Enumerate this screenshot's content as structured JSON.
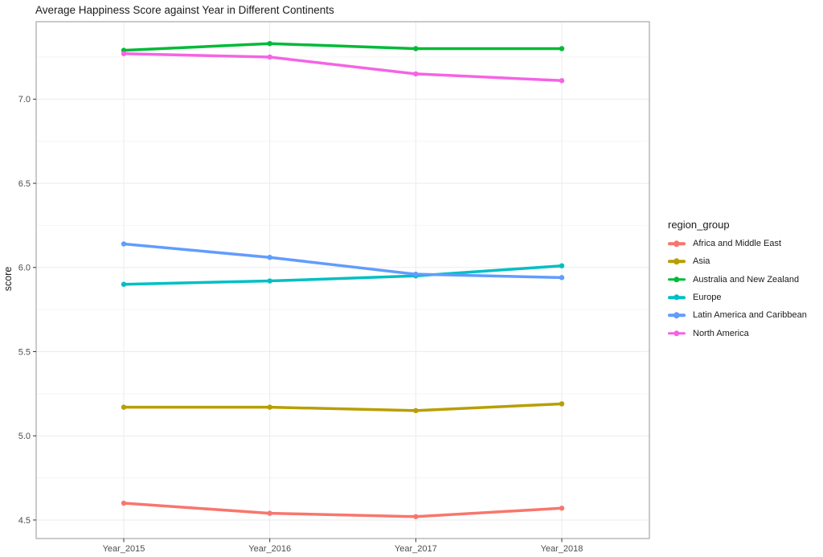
{
  "chart_data": {
    "type": "line",
    "title": "Average Happiness Score against Year in Different Continents",
    "xlabel": "",
    "ylabel": "score",
    "x_categories": [
      "Year_2015",
      "Year_2016",
      "Year_2017",
      "Year_2018"
    ],
    "series": [
      {
        "name": "Africa and Middle East",
        "color": "#F8766D",
        "values": [
          4.6,
          4.54,
          4.52,
          4.57
        ]
      },
      {
        "name": "Asia",
        "color": "#B79F00",
        "values": [
          5.17,
          5.17,
          5.15,
          5.19
        ]
      },
      {
        "name": "Australia and New Zealand",
        "color": "#00BA38",
        "values": [
          7.29,
          7.33,
          7.3,
          7.3
        ]
      },
      {
        "name": "Europe",
        "color": "#00BFC4",
        "values": [
          5.9,
          5.92,
          5.95,
          6.01
        ]
      },
      {
        "name": "Latin America and Caribbean",
        "color": "#619CFF",
        "values": [
          6.14,
          6.06,
          5.96,
          5.94
        ]
      },
      {
        "name": "North America",
        "color": "#F564E3",
        "values": [
          7.27,
          7.25,
          7.15,
          7.11
        ]
      }
    ],
    "y_ticks": [
      4.5,
      5.0,
      5.5,
      6.0,
      6.5,
      7.0
    ],
    "y_tick_labels": [
      "4.5",
      "5.0",
      "5.5",
      "6.0",
      "6.5",
      "7.0"
    ],
    "ylim": [
      4.39,
      7.46
    ],
    "grid": true,
    "legend_title": "region_group",
    "legend_position": "right",
    "theme": {
      "panel_background": "#ffffff",
      "panel_border": "#a6a6a6",
      "grid_major": "#ebebeb",
      "grid_minor": "#f5f5f5",
      "axis_text": "#4d4d4d",
      "tick_mark": "#333333",
      "title_color": "#1b1b1b"
    }
  }
}
